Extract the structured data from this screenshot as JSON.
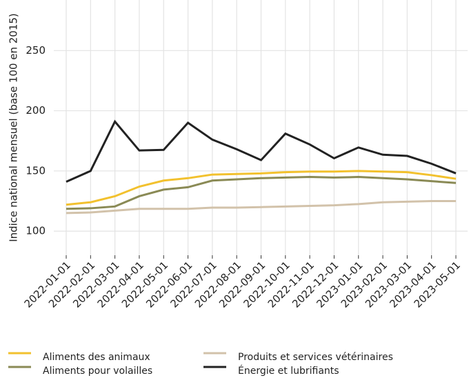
{
  "chart_data": {
    "type": "line",
    "y_label": "Indice national mensuel (base 100 en 2015)",
    "categories": [
      "2022-01-01",
      "2022-02-01",
      "2022-03-01",
      "2022-04-01",
      "2022-05-01",
      "2022-06-01",
      "2022-07-01",
      "2022-08-01",
      "2022-09-01",
      "2022-10-01",
      "2022-11-01",
      "2022-12-01",
      "2023-01-01",
      "2023-02-01",
      "2023-03-01",
      "2023-04-01",
      "2023-05-01"
    ],
    "series": [
      {
        "name": "Aliments des animaux",
        "color": "#f2c12e",
        "values": [
          122,
          124,
          129,
          137,
          142,
          144,
          147,
          147.5,
          148,
          149,
          149.5,
          149.5,
          150,
          149.5,
          149,
          146.5,
          143.5
        ]
      },
      {
        "name": "Aliments pour volailles",
        "color": "#8a8a55",
        "values": [
          118.5,
          119,
          120.5,
          129,
          134.5,
          136.5,
          142,
          143,
          144,
          144.5,
          145,
          144.5,
          145,
          144,
          143,
          141.5,
          140
        ]
      },
      {
        "name": "Produits et services vétérinaires",
        "color": "#d2c2aa",
        "values": [
          115,
          115.5,
          117,
          118.5,
          118.5,
          118.5,
          119.5,
          119.5,
          120,
          120.5,
          121,
          121.5,
          122.5,
          124,
          124.5,
          125,
          125
        ]
      },
      {
        "name": "Énergie et lubrifiants",
        "color": "#222222",
        "values": [
          141,
          150,
          191,
          167,
          167.5,
          190,
          176,
          168,
          159,
          181,
          172,
          160.5,
          169.5,
          163.5,
          162.5,
          156,
          148
        ]
      }
    ],
    "ylim": [
      80,
      292
    ],
    "yticks": [
      100,
      150,
      200,
      250
    ],
    "grid": true
  }
}
